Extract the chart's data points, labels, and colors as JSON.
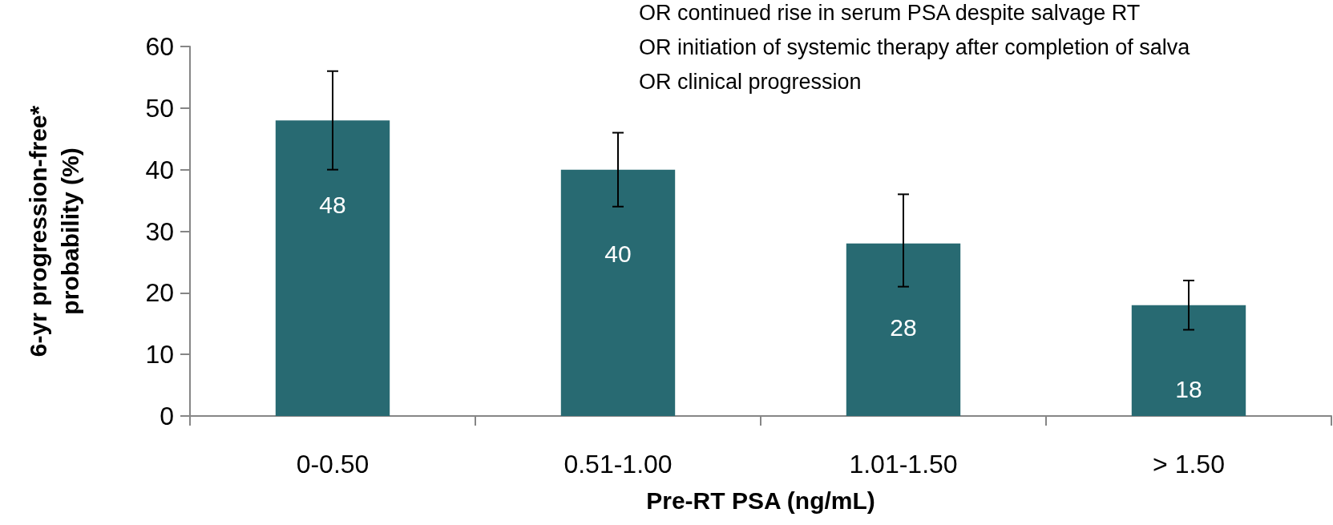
{
  "chart_data": {
    "type": "bar",
    "xlabel": "Pre-RT PSA (ng/mL)",
    "ylabel": "6-yr progression-free*\nprobability (%)",
    "annotations": [
      "OR continued rise in serum PSA despite salvage RT",
      "OR initiation of systemic therapy after completion of salva",
      "OR clinical progression"
    ],
    "categories": [
      "0-0.50",
      "0.51-1.00",
      "1.01-1.50",
      "> 1.50"
    ],
    "values": [
      48,
      40,
      28,
      18
    ],
    "errors": [
      [
        40,
        56
      ],
      [
        34,
        46
      ],
      [
        21,
        36
      ],
      [
        14,
        22
      ]
    ],
    "color": "#286a72",
    "data_labels": true,
    "grid": false,
    "ylim": [
      0,
      60
    ],
    "yticks": [
      0,
      10,
      20,
      30,
      40,
      50,
      60
    ]
  }
}
